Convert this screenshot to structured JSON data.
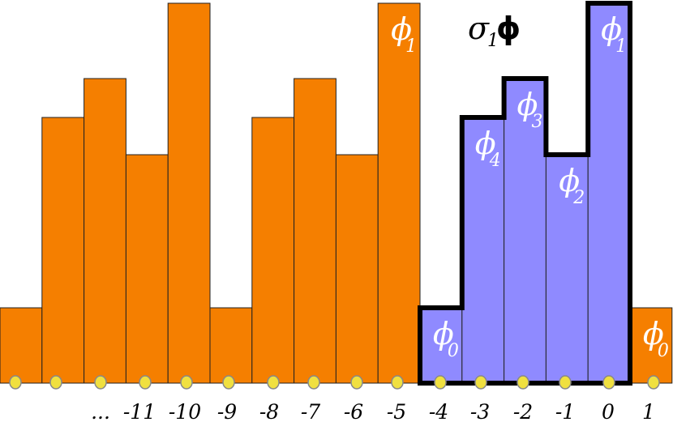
{
  "title": {
    "sigma": "σ",
    "subscript": "1",
    "phi": "ϕ"
  },
  "colors": {
    "orange": "#f57f00",
    "blue": "#8f8aff",
    "dot": "#f0e040",
    "outline": "#000000"
  },
  "tick_labels": [
    "...",
    "-11",
    "-10",
    "-9",
    "-8",
    "-7",
    "-6",
    "-5",
    "-4",
    "-3",
    "-2",
    "-1",
    "0",
    "1"
  ],
  "bars": [
    {
      "level": 1,
      "color": "orange"
    },
    {
      "level": 4,
      "color": "orange"
    },
    {
      "level": 5,
      "color": "orange"
    },
    {
      "level": 3,
      "color": "orange"
    },
    {
      "level": 6,
      "color": "orange"
    },
    {
      "level": 1,
      "color": "orange"
    },
    {
      "level": 4,
      "color": "orange"
    },
    {
      "level": 5,
      "color": "orange"
    },
    {
      "level": 3,
      "color": "orange"
    },
    {
      "level": 6,
      "color": "orange",
      "phi": "ϕ",
      "sub": "1"
    },
    {
      "level": 1,
      "color": "blue",
      "phi": "ϕ",
      "sub": "0"
    },
    {
      "level": 4,
      "color": "blue",
      "phi": "ϕ",
      "sub": "4"
    },
    {
      "level": 5,
      "color": "blue",
      "phi": "ϕ",
      "sub": "3"
    },
    {
      "level": 3,
      "color": "blue",
      "phi": "ϕ",
      "sub": "2"
    },
    {
      "level": 6,
      "color": "blue",
      "phi": "ϕ",
      "sub": "1"
    },
    {
      "level": 1,
      "color": "orange",
      "phi": "ϕ",
      "sub": "0"
    }
  ]
}
